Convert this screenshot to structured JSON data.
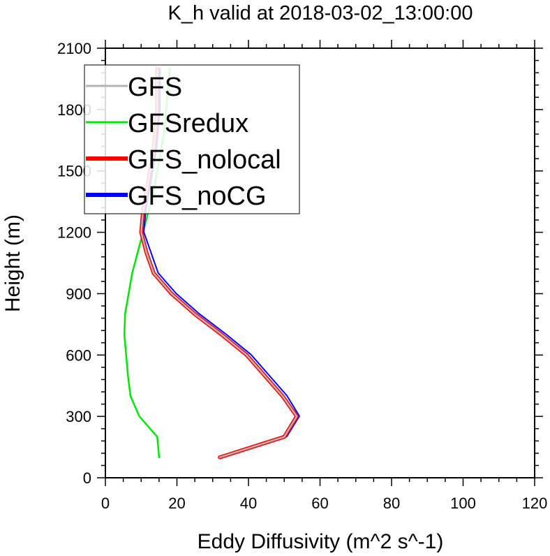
{
  "chart_data": {
    "type": "line",
    "title": "K_h valid at 2018-03-02_13:00:00",
    "xlabel": "Eddy Diffusivity (m^2 s^-1)",
    "ylabel": "Height (m)",
    "xlim": [
      0,
      120
    ],
    "ylim": [
      0,
      2100
    ],
    "xticks": [
      "0",
      "20",
      "40",
      "60",
      "80",
      "100",
      "120"
    ],
    "yticks": [
      "0",
      "300",
      "600",
      "900",
      "1200",
      "1500",
      "1800",
      "2100"
    ],
    "legend_position": "top-left",
    "series": [
      {
        "name": "GFS",
        "color": "#b4b4b4",
        "points": [
          [
            32,
            100
          ],
          [
            50,
            200
          ],
          [
            53.5,
            300
          ],
          [
            49.5,
            400
          ],
          [
            44.5,
            500
          ],
          [
            39.5,
            600
          ],
          [
            32.5,
            700
          ],
          [
            25,
            800
          ],
          [
            18.5,
            900
          ],
          [
            13.5,
            1000
          ],
          [
            11.5,
            1100
          ],
          [
            10,
            1200
          ],
          [
            10.5,
            1300
          ],
          [
            11.5,
            1400
          ],
          [
            12.5,
            1500
          ],
          [
            13.5,
            1600
          ],
          [
            14,
            1700
          ],
          [
            14.5,
            1800
          ],
          [
            14.5,
            1900
          ],
          [
            14.5,
            2000
          ]
        ]
      },
      {
        "name": "GFSredux",
        "color": "#00e600",
        "points": [
          [
            15,
            100
          ],
          [
            14.5,
            200
          ],
          [
            9.5,
            300
          ],
          [
            7,
            400
          ],
          [
            6.3,
            500
          ],
          [
            5.8,
            600
          ],
          [
            5.3,
            700
          ],
          [
            5.5,
            800
          ],
          [
            6.5,
            900
          ],
          [
            7.5,
            1000
          ],
          [
            9,
            1100
          ],
          [
            10.5,
            1200
          ],
          [
            12,
            1300
          ],
          [
            13.5,
            1400
          ],
          [
            14.5,
            1500
          ],
          [
            15.5,
            1600
          ],
          [
            16.5,
            1700
          ],
          [
            17,
            1800
          ],
          [
            17.5,
            1900
          ],
          [
            18,
            2000
          ]
        ]
      },
      {
        "name": "GFS_nolocal",
        "color": "#ff0000",
        "points": [
          [
            32,
            100
          ],
          [
            50,
            200
          ],
          [
            53.5,
            300
          ],
          [
            49.5,
            400
          ],
          [
            44.5,
            500
          ],
          [
            39.5,
            600
          ],
          [
            32.5,
            700
          ],
          [
            25,
            800
          ],
          [
            18.5,
            900
          ],
          [
            13.5,
            1000
          ],
          [
            11.5,
            1100
          ],
          [
            10,
            1200
          ],
          [
            10.5,
            1300
          ],
          [
            11.5,
            1400
          ],
          [
            12.5,
            1500
          ],
          [
            13.5,
            1600
          ],
          [
            14,
            1700
          ],
          [
            14.5,
            1800
          ],
          [
            14.5,
            1900
          ],
          [
            14.5,
            2000
          ]
        ]
      },
      {
        "name": "GFS_noCG",
        "color": "#0000ff",
        "points": [
          [
            32,
            100
          ],
          [
            50.5,
            200
          ],
          [
            54,
            300
          ],
          [
            50.5,
            400
          ],
          [
            45.5,
            500
          ],
          [
            40.5,
            600
          ],
          [
            33.5,
            700
          ],
          [
            26,
            800
          ],
          [
            19.5,
            900
          ],
          [
            14.5,
            1000
          ],
          [
            12.5,
            1100
          ],
          [
            10.5,
            1200
          ],
          [
            11,
            1300
          ],
          [
            12,
            1400
          ],
          [
            13,
            1500
          ],
          [
            14,
            1600
          ],
          [
            14.5,
            1700
          ],
          [
            15,
            1800
          ],
          [
            15,
            1900
          ],
          [
            15,
            2000
          ]
        ]
      }
    ]
  }
}
